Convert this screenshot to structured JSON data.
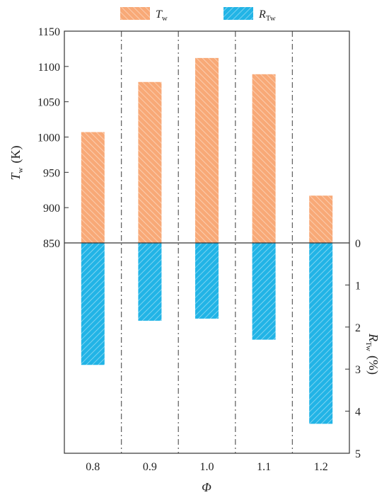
{
  "chart_data": {
    "type": "bar",
    "categories": [
      "0.8",
      "0.9",
      "1.0",
      "1.1",
      "1.2"
    ],
    "xlabel": "Φ",
    "left_axis": {
      "label_main": "T",
      "label_sub": "w",
      "label_unit": "(K)",
      "ylim": [
        850,
        1150
      ],
      "ticks": [
        850,
        900,
        950,
        1000,
        1050,
        1100,
        1150
      ]
    },
    "right_axis": {
      "label_main": "R",
      "label_sub": "Tw",
      "label_unit": "(%)",
      "ylim": [
        0,
        5
      ],
      "inverted": true,
      "ticks": [
        0,
        1,
        2,
        3,
        4,
        5
      ]
    },
    "series": [
      {
        "name": "T_w",
        "legend_main": "T",
        "legend_sub": "w",
        "axis": "left",
        "color": "#F8A977",
        "values": [
          1007,
          1078,
          1112,
          1089,
          917
        ]
      },
      {
        "name": "R_Tw",
        "legend_main": "R",
        "legend_sub": "Tw",
        "axis": "right",
        "color": "#22B4E6",
        "values": [
          2.9,
          1.85,
          1.8,
          2.3,
          4.3
        ]
      }
    ],
    "legend_position": "top",
    "separators": "dash-dot lines between categories"
  }
}
